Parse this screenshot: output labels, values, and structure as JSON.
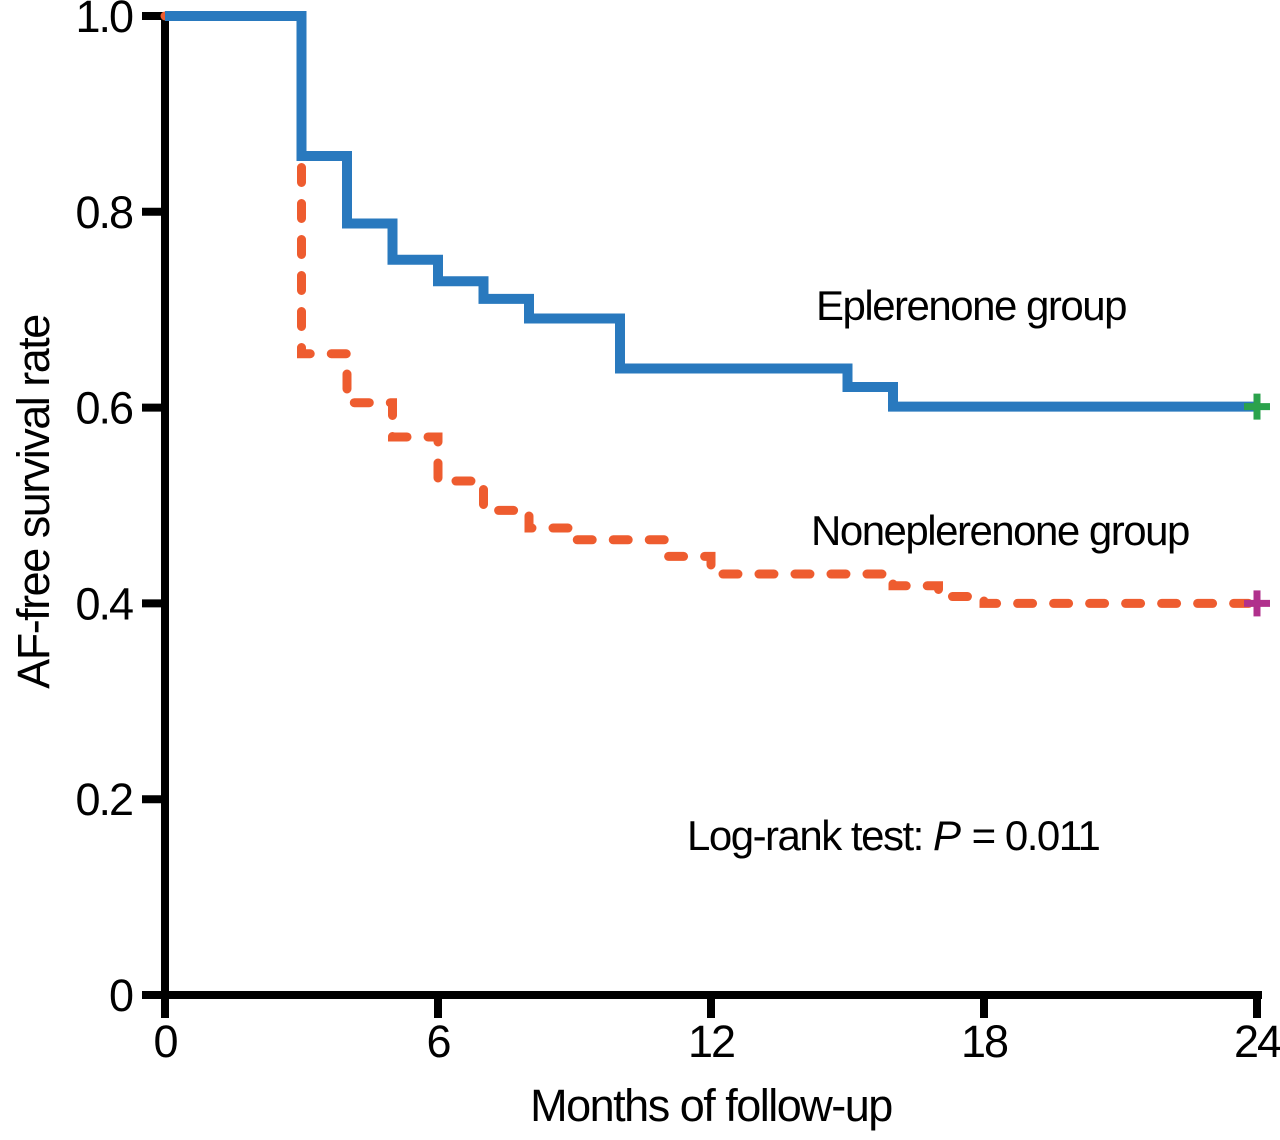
{
  "chart_data": {
    "type": "line",
    "variant": "kaplan_meier_step_survival",
    "title": "",
    "xlabel": "Months of follow-up",
    "ylabel": "AF-free survival rate",
    "xlim": [
      0,
      24
    ],
    "ylim": [
      0,
      1.0
    ],
    "xticks": [
      0,
      6,
      12,
      18,
      24
    ],
    "xtick_labels": [
      "0",
      "6",
      "12",
      "18",
      "24"
    ],
    "ytick_values": [
      1.0,
      0.8,
      0.6,
      0.4,
      0.2,
      0
    ],
    "ytick_labels": [
      "1.0",
      "0.8",
      "0.6",
      "0.4",
      "0.2",
      "0"
    ],
    "grid": false,
    "legend_position": "inline-text-annotations",
    "axis_color": "#000000",
    "series": [
      {
        "name": "Noneplerenone group",
        "color": "#EE5C2F",
        "line_style": "dashed",
        "points": [
          [
            0,
            1.0
          ],
          [
            3,
            0.655
          ],
          [
            4,
            0.605
          ],
          [
            5,
            0.57
          ],
          [
            6,
            0.525
          ],
          [
            7,
            0.495
          ],
          [
            8,
            0.477
          ],
          [
            9,
            0.465
          ],
          [
            11,
            0.448
          ],
          [
            12,
            0.43
          ],
          [
            16,
            0.418
          ],
          [
            17,
            0.407
          ],
          [
            18,
            0.4
          ]
        ],
        "end_time": 24,
        "final_value": 0.4,
        "censor_mark": {
          "time": 24,
          "value": 0.4,
          "symbol": "plus",
          "color": "#B0308C"
        }
      },
      {
        "name": "Eplerenone group",
        "color": "#2979BE",
        "line_style": "solid",
        "points": [
          [
            0,
            1.0
          ],
          [
            3,
            0.857
          ],
          [
            4,
            0.788
          ],
          [
            5,
            0.751
          ],
          [
            6,
            0.729
          ],
          [
            7,
            0.711
          ],
          [
            8,
            0.691
          ],
          [
            10,
            0.64
          ],
          [
            15,
            0.621
          ],
          [
            16,
            0.601
          ]
        ],
        "end_time": 24,
        "final_value": 0.6,
        "censor_mark": {
          "time": 24,
          "value": 0.601,
          "symbol": "plus",
          "color": "#2BA24C"
        }
      }
    ],
    "annotation": {
      "prefix": "Log-rank test: ",
      "stat": "P",
      "rest": " = 0.011"
    }
  }
}
